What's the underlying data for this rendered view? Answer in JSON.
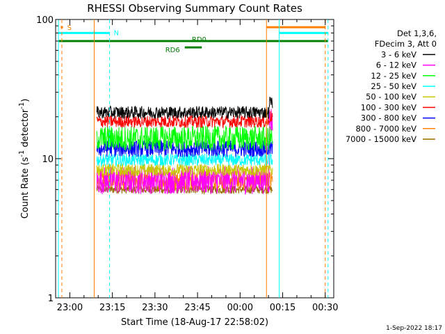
{
  "chart_data": {
    "type": "line",
    "title": "RHESSI Observing Summary Count Rates",
    "xlabel": "Start Time (18-Aug-17 22:58:02)",
    "ylabel_main": "Count Rate (s",
    "ylabel_sup1": "-1",
    "ylabel_mid": " detector",
    "ylabel_sup2": "-1",
    "ylabel_end": ")",
    "yscale": "log",
    "ylim": [
      1,
      100
    ],
    "xlim_minutes": [
      -3,
      95
    ],
    "x_ticks": [
      {
        "label": "23:00",
        "m": 2
      },
      {
        "label": "23:15",
        "m": 17
      },
      {
        "label": "23:30",
        "m": 32
      },
      {
        "label": "23:45",
        "m": 47
      },
      {
        "label": "00:00",
        "m": 62
      },
      {
        "label": "00:15",
        "m": 77
      },
      {
        "label": "00:30",
        "m": 92
      }
    ],
    "y_tick_labels": [
      {
        "label": "100",
        "v": 100
      },
      {
        "label": "10",
        "v": 10
      },
      {
        "label": "1",
        "v": 1
      }
    ],
    "legend_header": [
      "Det 1,3,6,",
      "FDecim 3, Att 0"
    ],
    "series": [
      {
        "name": "3 - 6 keV",
        "color": "#000000",
        "level": 21.5,
        "noise": 0.045,
        "end": 25.5
      },
      {
        "name": "6 - 12 keV",
        "color": "#ff00ff",
        "level": 7.0,
        "noise": 0.1,
        "end": 19.0
      },
      {
        "name": "12 - 25 keV",
        "color": "#00ff00",
        "level": 14.0,
        "noise": 0.09,
        "end": 14.0
      },
      {
        "name": "25 - 50 keV",
        "color": "#00ffff",
        "level": 9.8,
        "noise": 0.045,
        "end": 9.8
      },
      {
        "name": "50 - 100 keV",
        "color": "#c8c800",
        "level": 8.3,
        "noise": 0.045,
        "end": 8.3
      },
      {
        "name": "100 - 300 keV",
        "color": "#ff0000",
        "level": 18.5,
        "noise": 0.045,
        "end": 20.0
      },
      {
        "name": "300 - 800 keV",
        "color": "#0000ff",
        "level": 11.8,
        "noise": 0.06,
        "end": 11.8
      },
      {
        "name": "800 - 7000 keV",
        "color": "#ff8000",
        "level": 7.0,
        "noise": 0.07,
        "end": 7.0
      },
      {
        "name": "7000 - 15000 keV",
        "color": "#9a6a00",
        "level": 6.0,
        "noise": 0.03,
        "end": 6.0
      }
    ],
    "data_window_minutes": [
      11.5,
      73.5
    ],
    "vertical_lines": [
      {
        "m": -2.0,
        "color": "#00ffff",
        "style": "solid"
      },
      {
        "m": -0.8,
        "color": "#ff8000",
        "style": "dashed"
      },
      {
        "m": 10.6,
        "color": "#ff8000",
        "style": "solid"
      },
      {
        "m": 16.0,
        "color": "#00ffff",
        "style": "dashed"
      },
      {
        "m": 71.3,
        "color": "#ff8000",
        "style": "solid"
      },
      {
        "m": 75.8,
        "color": "#00ffff",
        "style": "solid"
      },
      {
        "m": 92.0,
        "color": "#ff8000",
        "style": "dashed"
      },
      {
        "m": 93.0,
        "color": "#00ffff",
        "style": "dashed"
      }
    ],
    "flag_bars": [
      {
        "name": "SAA",
        "label": "S",
        "color": "#ff8000",
        "level": 88,
        "from": -1.2,
        "to": -0.4,
        "label_color": "#ff8000"
      },
      {
        "name": "Night",
        "label": "N",
        "color": "#00ffff",
        "level": 80,
        "from": -2.0,
        "to": 16.0,
        "label_color": "#00ffff"
      },
      {
        "name": "Night2",
        "label": "",
        "color": "#00ffff",
        "level": 80,
        "from": 75.8,
        "to": 93.0,
        "label_color": "#00ffff"
      },
      {
        "name": "SAA2",
        "label": "",
        "color": "#ff8000",
        "level": 88,
        "from": 71.3,
        "to": 92.0,
        "label_color": "#ff8000"
      },
      {
        "name": "Decimation",
        "label": "RD0",
        "color": "#008000",
        "level": 70,
        "from": -2.0,
        "to": 93.0,
        "label_color": "#008000"
      },
      {
        "name": "Decimation6",
        "label": "RD6",
        "color": "#008000",
        "level": 63,
        "from": 42.5,
        "to": 48.5,
        "label_color": "#008000"
      }
    ]
  },
  "footer": {
    "date": "1-Sep-2022 18:17"
  }
}
